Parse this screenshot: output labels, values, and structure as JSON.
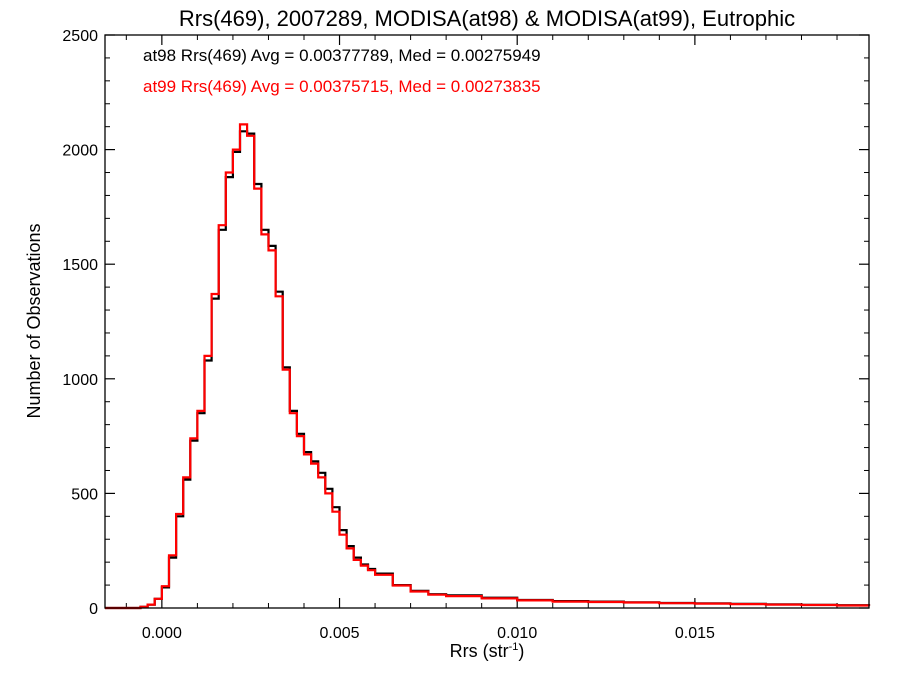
{
  "chart_data": {
    "type": "line",
    "title": "Rrs(469), 2007289, MODISA(at98) & MODISA(at99), Eutrophic",
    "xlabel_main": "Rrs (str",
    "xlabel_sup": "-1",
    "xlabel_close": ")",
    "ylabel": "Number of Observations",
    "xlim": [
      -0.0016,
      0.0199
    ],
    "ylim": [
      0,
      2500
    ],
    "x_ticks": [
      {
        "value": 0.0,
        "label": "0.000"
      },
      {
        "value": 0.005,
        "label": "0.005"
      },
      {
        "value": 0.01,
        "label": "0.010"
      },
      {
        "value": 0.015,
        "label": "0.015"
      }
    ],
    "y_ticks": [
      {
        "value": 0,
        "label": "0"
      },
      {
        "value": 500,
        "label": "500"
      },
      {
        "value": 1000,
        "label": "1000"
      },
      {
        "value": 1500,
        "label": "1500"
      },
      {
        "value": 2000,
        "label": "2000"
      },
      {
        "value": 2500,
        "label": "2500"
      }
    ],
    "annotations": [
      {
        "text": "at98 Rrs(469) Avg = 0.00377789, Med = 0.00275949",
        "color": "#000000"
      },
      {
        "text": "at99 Rrs(469) Avg = 0.00375715, Med = 0.00273835",
        "color": "#ff0000"
      }
    ],
    "series": [
      {
        "color": "#000000",
        "x": [
          -0.0016,
          -0.001,
          -0.0006,
          -0.0004,
          -0.0002,
          0.0,
          0.0002,
          0.0004,
          0.0006,
          0.0008,
          0.001,
          0.0012,
          0.0014,
          0.0016,
          0.0018,
          0.002,
          0.0022,
          0.0024,
          0.0026,
          0.0028,
          0.003,
          0.0032,
          0.0034,
          0.0036,
          0.0038,
          0.004,
          0.0042,
          0.0044,
          0.0046,
          0.0048,
          0.005,
          0.0052,
          0.0054,
          0.0056,
          0.0058,
          0.006,
          0.0065,
          0.007,
          0.0075,
          0.008,
          0.009,
          0.01,
          0.011,
          0.012,
          0.013,
          0.014,
          0.015,
          0.016,
          0.017,
          0.018,
          0.019,
          0.0199
        ],
        "y": [
          0,
          0,
          5,
          15,
          40,
          90,
          220,
          400,
          560,
          730,
          850,
          1080,
          1350,
          1650,
          1880,
          1990,
          2080,
          2070,
          1850,
          1650,
          1580,
          1380,
          1050,
          860,
          760,
          680,
          640,
          590,
          520,
          440,
          340,
          270,
          220,
          190,
          170,
          150,
          100,
          75,
          60,
          55,
          45,
          35,
          30,
          28,
          25,
          22,
          20,
          18,
          16,
          14,
          12,
          10
        ]
      },
      {
        "color": "#ff0000",
        "x": [
          -0.0016,
          -0.001,
          -0.0006,
          -0.0004,
          -0.0002,
          0.0,
          0.0002,
          0.0004,
          0.0006,
          0.0008,
          0.001,
          0.0012,
          0.0014,
          0.0016,
          0.0018,
          0.002,
          0.0022,
          0.0024,
          0.0026,
          0.0028,
          0.003,
          0.0032,
          0.0034,
          0.0036,
          0.0038,
          0.004,
          0.0042,
          0.0044,
          0.0046,
          0.0048,
          0.005,
          0.0052,
          0.0054,
          0.0056,
          0.0058,
          0.006,
          0.0065,
          0.007,
          0.0075,
          0.008,
          0.009,
          0.01,
          0.011,
          0.012,
          0.013,
          0.014,
          0.015,
          0.016,
          0.017,
          0.018,
          0.019,
          0.0199
        ],
        "y": [
          0,
          0,
          5,
          15,
          40,
          95,
          230,
          410,
          570,
          740,
          860,
          1100,
          1370,
          1670,
          1900,
          2000,
          2110,
          2060,
          1830,
          1630,
          1560,
          1360,
          1040,
          850,
          750,
          670,
          630,
          570,
          500,
          420,
          320,
          260,
          210,
          185,
          165,
          145,
          98,
          72,
          58,
          52,
          42,
          33,
          28,
          26,
          24,
          21,
          19,
          17,
          15,
          13,
          11,
          10
        ]
      }
    ]
  }
}
